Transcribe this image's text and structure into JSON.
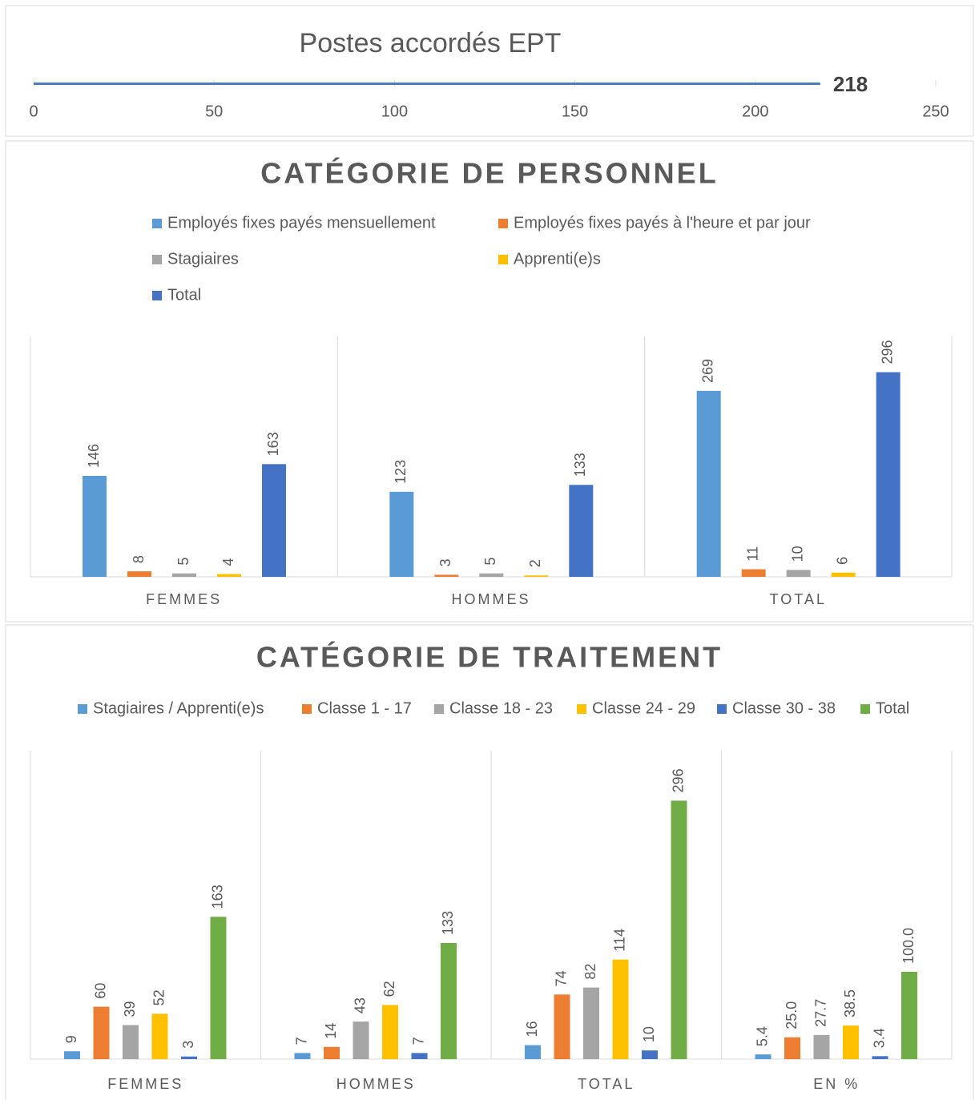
{
  "chart_data": [
    {
      "type": "hbar",
      "title": "Postes accordés EPT",
      "categories": [
        null
      ],
      "values": [
        218
      ],
      "color": "#4a7ebb",
      "xlim": [
        0,
        250
      ],
      "xticks": [
        0,
        50,
        100,
        150,
        200,
        250
      ]
    },
    {
      "type": "bar",
      "title": "CATÉGORIE DE PERSONNEL",
      "categories": [
        "FEMMES",
        "HOMMES",
        "TOTAL"
      ],
      "series": [
        {
          "name": "Employés fixes payés mensuellement",
          "color": "#5b9bd5",
          "values": [
            146,
            123,
            269
          ]
        },
        {
          "name": "Employés fixes payés à l'heure et par jour",
          "color": "#ed7d31",
          "values": [
            8,
            3,
            11
          ]
        },
        {
          "name": "Stagiaires",
          "color": "#a5a5a5",
          "values": [
            5,
            5,
            10
          ]
        },
        {
          "name": "Apprenti(e)s",
          "color": "#ffc000",
          "values": [
            4,
            2,
            6
          ]
        },
        {
          "name": "Total",
          "color": "#4472c4",
          "values": [
            163,
            133,
            296
          ]
        }
      ]
    },
    {
      "type": "bar",
      "title": "CATÉGORIE DE TRAITEMENT",
      "categories": [
        "FEMMES",
        "HOMMES",
        "TOTAL",
        "EN %"
      ],
      "series": [
        {
          "name": "Stagiaires / Apprenti(e)s",
          "color": "#5b9bd5",
          "values": [
            9,
            7,
            16,
            5.4
          ]
        },
        {
          "name": "Classe 1 - 17",
          "color": "#ed7d31",
          "values": [
            60,
            14,
            74,
            25.0
          ],
          "value_labels": [
            "60",
            "14",
            "74",
            "25.0"
          ]
        },
        {
          "name": "Classe 18 - 23",
          "color": "#a5a5a5",
          "values": [
            39,
            43,
            82,
            27.7
          ]
        },
        {
          "name": "Classe 24 - 29",
          "color": "#ffc000",
          "values": [
            52,
            62,
            114,
            38.5
          ]
        },
        {
          "name": "Classe 30 - 38",
          "color": "#4472c4",
          "values": [
            3,
            7,
            10,
            3.4
          ]
        },
        {
          "name": "Total",
          "color": "#70ad47",
          "values": [
            163,
            133,
            296,
            100.0
          ],
          "value_labels": [
            "163",
            "133",
            "296",
            "100.0"
          ]
        }
      ]
    }
  ]
}
